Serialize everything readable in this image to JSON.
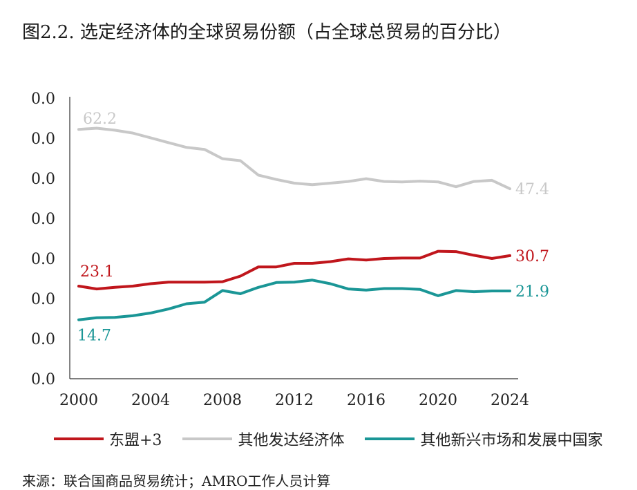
{
  "title": "图2.2. 选定经济体的全球贸易份额（占全球总贸易的百分比）",
  "source": "来源：联合国商品贸易统计；AMRO工作人员计算",
  "chart_data": {
    "type": "line",
    "x": [
      2000,
      2001,
      2002,
      2003,
      2004,
      2005,
      2006,
      2007,
      2008,
      2009,
      2010,
      2011,
      2012,
      2013,
      2014,
      2015,
      2016,
      2017,
      2018,
      2019,
      2020,
      2021,
      2022,
      2023,
      2024
    ],
    "x_ticks": [
      "2000",
      "2004",
      "2008",
      "2012",
      "2016",
      "2020",
      "2024"
    ],
    "y_ticks": [
      "0.0",
      "0.0",
      "0.0",
      "0.0",
      "0.0",
      "0.0",
      "0.0",
      "0.0"
    ],
    "ylim": [
      0,
      70
    ],
    "grid": false,
    "legend_position": "bottom",
    "series": [
      {
        "name": "东盟+3",
        "color": "#c0161c",
        "values": [
          23.1,
          22.4,
          22.8,
          23.1,
          23.7,
          24.1,
          24.1,
          24.1,
          24.2,
          25.6,
          27.9,
          27.9,
          28.8,
          28.8,
          29.2,
          29.9,
          29.6,
          30.0,
          30.1,
          30.1,
          31.8,
          31.7,
          30.8,
          30.0,
          30.7
        ],
        "start_label": "23.1",
        "end_label": "30.7"
      },
      {
        "name": "其他发达经济体",
        "color": "#c8c8c8",
        "values": [
          62.2,
          62.5,
          62.0,
          61.3,
          60.1,
          58.9,
          57.7,
          57.2,
          54.9,
          54.4,
          50.8,
          49.7,
          48.8,
          48.4,
          48.8,
          49.2,
          49.9,
          49.2,
          49.1,
          49.3,
          49.1,
          47.9,
          49.2,
          49.5,
          47.4
        ],
        "start_label": "62.2",
        "end_label": "47.4"
      },
      {
        "name": "其他新兴市场和发展中国家",
        "color": "#1a9696",
        "values": [
          14.7,
          15.2,
          15.3,
          15.7,
          16.4,
          17.4,
          18.7,
          19.1,
          22.0,
          21.2,
          22.8,
          24.0,
          24.1,
          24.6,
          23.7,
          22.4,
          22.1,
          22.5,
          22.5,
          22.3,
          20.7,
          22.0,
          21.7,
          21.9,
          21.9
        ],
        "start_label": "14.7",
        "end_label": "21.9"
      }
    ]
  }
}
